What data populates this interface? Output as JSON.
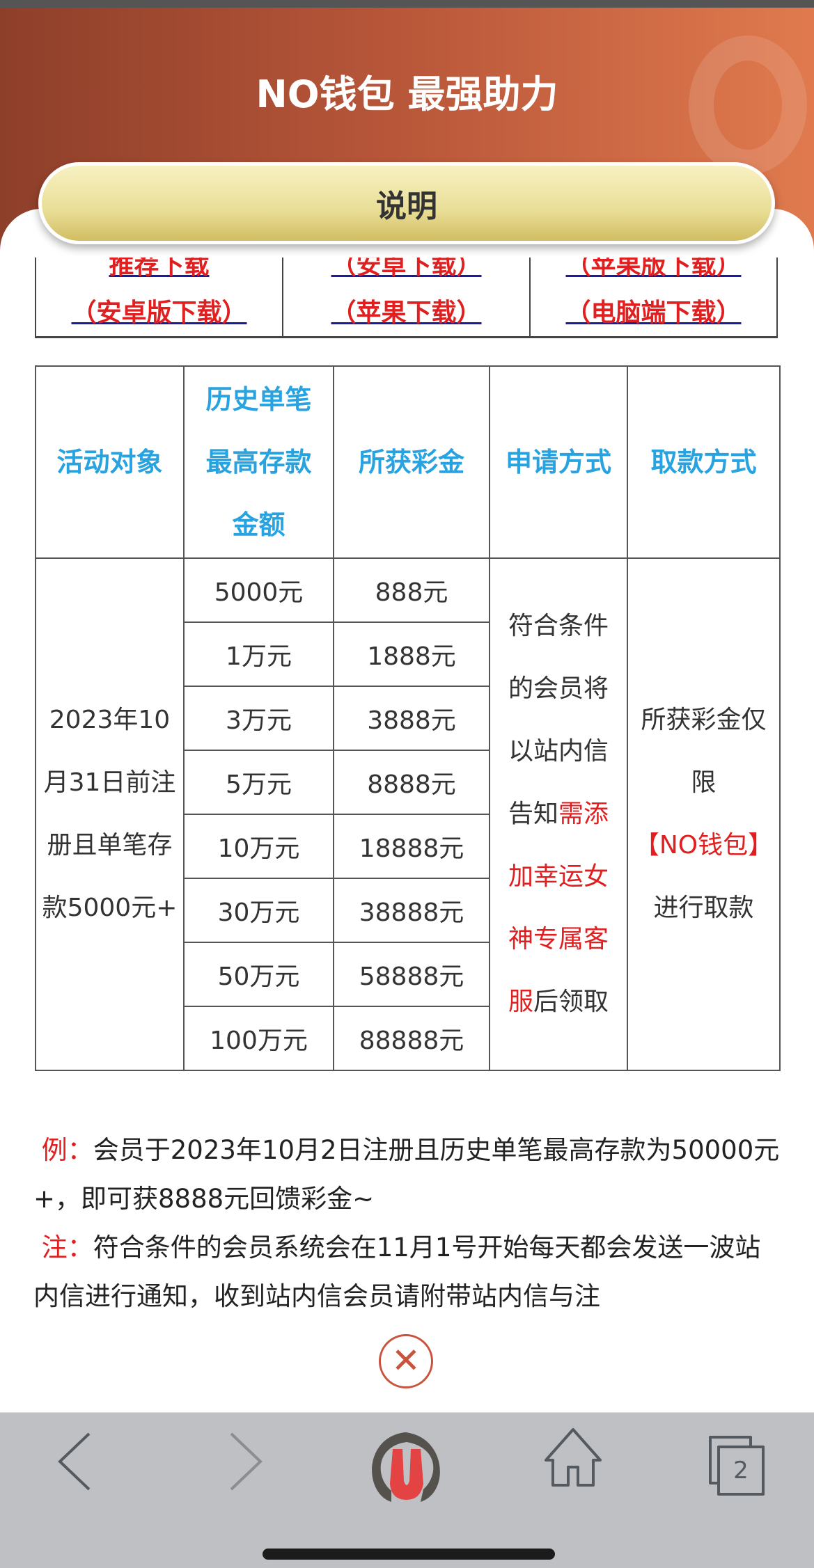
{
  "header": {
    "title": "NO钱包 最强助力",
    "explain_button": "说明"
  },
  "downloads": [
    {
      "top": "推荐下载",
      "bottom": "（安卓版下载）"
    },
    {
      "top": "（安卓下载）",
      "bottom": "（苹果下载）"
    },
    {
      "top": "（苹果版下载）",
      "bottom": "（电脑端下载）"
    }
  ],
  "table": {
    "headers": [
      "活动对象",
      "历史单笔最高存款金额",
      "所获彩金",
      "申请方式",
      "取款方式"
    ],
    "target": "2023年10月31日前注册且单笔存款5000元+",
    "rows": [
      {
        "deposit": "5000元",
        "bonus": "888元"
      },
      {
        "deposit": "1万元",
        "bonus": "1888元"
      },
      {
        "deposit": "3万元",
        "bonus": "3888元"
      },
      {
        "deposit": "5万元",
        "bonus": "8888元"
      },
      {
        "deposit": "10万元",
        "bonus": "18888元"
      },
      {
        "deposit": "30万元",
        "bonus": "38888元"
      },
      {
        "deposit": "50万元",
        "bonus": "58888元"
      },
      {
        "deposit": "100万元",
        "bonus": "88888元"
      }
    ],
    "apply_text": "符合条件的会员将以站内信告知",
    "apply_red": "需添加幸运女神专属客服",
    "apply_tail": "后领取",
    "withdraw_text": "所获彩金仅限",
    "withdraw_red": "【NO钱包】",
    "withdraw_tail": "进行取款"
  },
  "notes": {
    "example_label": "例：",
    "example_text": "会员于2023年10月2日注册且历史单笔最高存款为50000元+，即可获8888元回馈彩金~",
    "note_label": "注：",
    "note_text": "符合条件的会员系统会在11月1号开始每天都会发送一波站内信进行通知，收到站内信会员请附带站内信与注"
  },
  "close_icon": "circle-x-icon",
  "browser_bar": {
    "tab_count": "2"
  },
  "colors": {
    "accent": "#e02020",
    "header_blue": "#29a3e0",
    "header_bg": "#b9573a"
  }
}
